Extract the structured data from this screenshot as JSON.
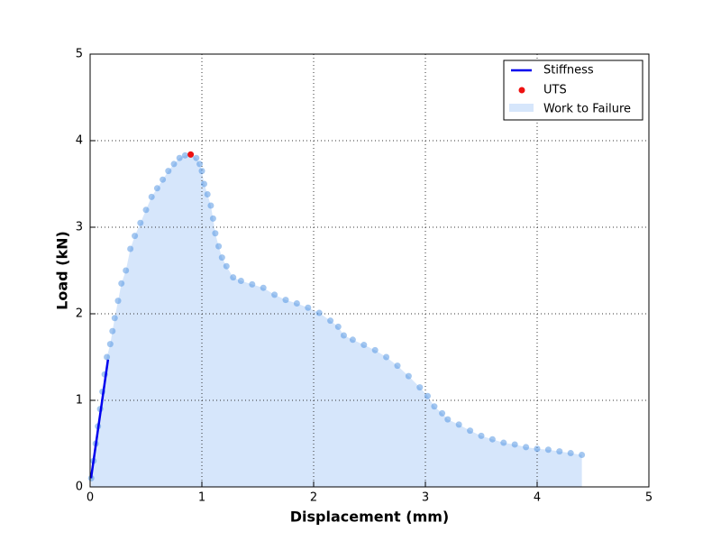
{
  "chart_data": {
    "type": "scatter",
    "xlabel": "Displacement (mm)",
    "ylabel": "Load (kN)",
    "xlim": [
      0,
      5
    ],
    "ylim": [
      0,
      5
    ],
    "xticks": [
      0,
      1,
      2,
      3,
      4,
      5
    ],
    "yticks": [
      0,
      1,
      2,
      3,
      4,
      5
    ],
    "grid": true,
    "legend": "upper right",
    "point_color": "#4a90e2",
    "x": [
      0.01,
      0.03,
      0.05,
      0.07,
      0.09,
      0.11,
      0.13,
      0.15,
      0.18,
      0.2,
      0.22,
      0.25,
      0.28,
      0.32,
      0.36,
      0.4,
      0.45,
      0.5,
      0.55,
      0.6,
      0.65,
      0.7,
      0.75,
      0.8,
      0.85,
      0.9,
      0.95,
      0.98,
      1.0,
      1.02,
      1.05,
      1.08,
      1.1,
      1.12,
      1.15,
      1.18,
      1.22,
      1.28,
      1.35,
      1.45,
      1.55,
      1.65,
      1.75,
      1.85,
      1.95,
      2.05,
      2.15,
      2.22,
      2.27,
      2.35,
      2.45,
      2.55,
      2.65,
      2.75,
      2.85,
      2.95,
      3.02,
      3.08,
      3.15,
      3.2,
      3.3,
      3.4,
      3.5,
      3.6,
      3.7,
      3.8,
      3.9,
      4.0,
      4.1,
      4.2,
      4.3,
      4.4
    ],
    "y": [
      0.1,
      0.3,
      0.5,
      0.7,
      0.9,
      1.1,
      1.3,
      1.5,
      1.65,
      1.8,
      1.95,
      2.15,
      2.35,
      2.5,
      2.75,
      2.9,
      3.05,
      3.2,
      3.35,
      3.45,
      3.55,
      3.65,
      3.73,
      3.8,
      3.83,
      3.84,
      3.8,
      3.73,
      3.65,
      3.5,
      3.38,
      3.25,
      3.1,
      2.93,
      2.78,
      2.65,
      2.55,
      2.42,
      2.38,
      2.34,
      2.3,
      2.22,
      2.16,
      2.12,
      2.07,
      2.01,
      1.92,
      1.85,
      1.75,
      1.7,
      1.64,
      1.58,
      1.5,
      1.4,
      1.28,
      1.15,
      1.05,
      0.93,
      0.85,
      0.78,
      0.72,
      0.65,
      0.59,
      0.55,
      0.51,
      0.49,
      0.46,
      0.44,
      0.43,
      0.41,
      0.39,
      0.37
    ],
    "stiffness": {
      "name": "Stiffness",
      "color": "#0000ee",
      "x": [
        0.008,
        0.16
      ],
      "y": [
        0.1,
        1.47
      ]
    },
    "uts": {
      "name": "UTS",
      "color": "#ee1111",
      "x": [
        0.9
      ],
      "y": [
        3.84
      ]
    },
    "area": {
      "name": "Work to Failure",
      "color": "#d6e6fb"
    }
  }
}
